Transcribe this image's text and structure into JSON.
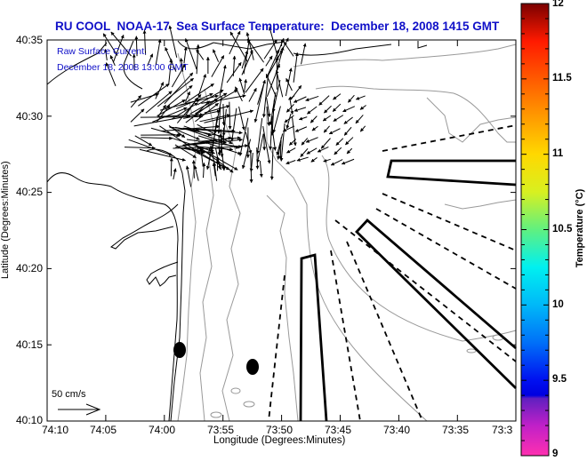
{
  "title": "RU COOL  NOAA-17  Sea Surface Temperature:  December 18, 2008 1415 GMT",
  "current_label": {
    "line1": "Raw Surface Current:",
    "line2": "December 18, 2008 13:00 GMT"
  },
  "scale_arrow": {
    "label": "50 cm/s",
    "speed_cm_s": 50
  },
  "axes": {
    "xlabel": "Longitude (Degrees:Minutes)",
    "ylabel": "Latitude (Degrees:Minutes)",
    "xticks": [
      "74:10",
      "74:05",
      "74:00",
      "73:55",
      "73:50",
      "73:45",
      "73:40",
      "73:35",
      "73:3"
    ],
    "yticks": [
      "40:35",
      "40:30",
      "40:25",
      "40:20",
      "40:15",
      "40:10"
    ]
  },
  "colorbar": {
    "label": "Temperature (°C)",
    "ticks": [
      "12",
      "11.5",
      "11",
      "10.5",
      "10",
      "9.5",
      "9"
    ],
    "range": [
      9,
      12
    ],
    "stops": [
      {
        "v": 12.0,
        "c": "#7a0000"
      },
      {
        "v": 11.75,
        "c": "#ff1a00"
      },
      {
        "v": 11.5,
        "c": "#ff5a00"
      },
      {
        "v": 11.25,
        "c": "#ff9a00"
      },
      {
        "v": 11.0,
        "c": "#ffd800"
      },
      {
        "v": 10.75,
        "c": "#d8f020"
      },
      {
        "v": 10.5,
        "c": "#60f080"
      },
      {
        "v": 10.25,
        "c": "#00f0f0"
      },
      {
        "v": 10.0,
        "c": "#00b8f8"
      },
      {
        "v": 9.75,
        "c": "#0070f8"
      },
      {
        "v": 9.5,
        "c": "#0010f0"
      },
      {
        "v": 9.4,
        "c": "#0000e0"
      },
      {
        "v": 9.38,
        "c": "#6020c0"
      },
      {
        "v": 9.2,
        "c": "#c020c8"
      },
      {
        "v": 9.0,
        "c": "#ff30b0"
      }
    ]
  },
  "chart_data": {
    "type": "map",
    "title": "RU COOL  NOAA-17  Sea Surface Temperature:  December 18, 2008 1415 GMT",
    "xlabel": "Longitude (Degrees:Minutes)",
    "ylabel": "Latitude (Degrees:Minutes)",
    "xlim_deg_min": [
      "74:10",
      "73:30"
    ],
    "ylim_deg_min": [
      "40:10",
      "40:35"
    ],
    "overlay": "Raw surface current vectors, December 18, 2008 13:00 GMT",
    "reference_vector": "50 cm/s",
    "colorbar_range_C": [
      9,
      12
    ],
    "colorbar_ticks": [
      12,
      11.5,
      11,
      10.5,
      10,
      9.5,
      9
    ],
    "markers": [
      {
        "type": "dot",
        "lon": "73:59",
        "lat": "40:14.7"
      },
      {
        "type": "dot",
        "lon": "73:52.3",
        "lat": "40:13.5"
      }
    ]
  }
}
